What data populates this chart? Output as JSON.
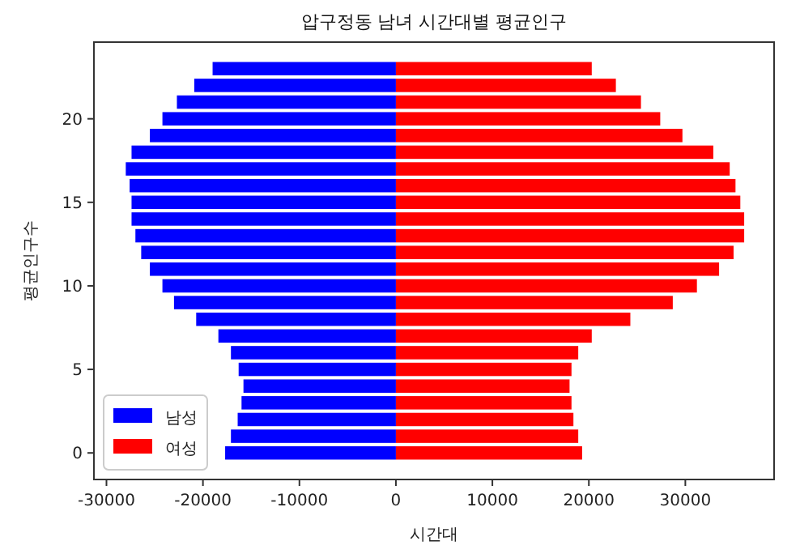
{
  "chart_data": {
    "type": "bar",
    "orientation": "horizontal",
    "title": "압구정동 남녀 시간대별 평균인구",
    "xlabel": "시간대",
    "ylabel": "평균인구수",
    "x": [
      0,
      1,
      2,
      3,
      4,
      5,
      6,
      7,
      8,
      9,
      10,
      11,
      12,
      13,
      14,
      15,
      16,
      17,
      18,
      19,
      20,
      21,
      22,
      23
    ],
    "series": [
      {
        "name": "남성",
        "color": "#0000ff",
        "values": [
          -17700,
          -17100,
          -16400,
          -16000,
          -15800,
          -16300,
          -17100,
          -18400,
          -20700,
          -23000,
          -24200,
          -25500,
          -26400,
          -27000,
          -27400,
          -27400,
          -27600,
          -28000,
          -27400,
          -25500,
          -24200,
          -22700,
          -20900,
          -19000
        ]
      },
      {
        "name": "여성",
        "color": "#ff0000",
        "values": [
          19300,
          18900,
          18400,
          18200,
          18000,
          18200,
          18900,
          20300,
          24300,
          28700,
          31200,
          33500,
          35000,
          36100,
          36100,
          35700,
          35200,
          34600,
          32900,
          29700,
          27400,
          25400,
          22800,
          20300
        ]
      }
    ],
    "xlim": [
      -31300,
      39200
    ],
    "xticks": [
      -30000,
      -20000,
      -10000,
      0,
      10000,
      20000,
      30000
    ],
    "ylim": [
      -1.59,
      24.59
    ],
    "yticks": [
      0,
      5,
      10,
      15,
      20
    ],
    "legend": "bottom left",
    "grid": false,
    "stacked": true
  }
}
